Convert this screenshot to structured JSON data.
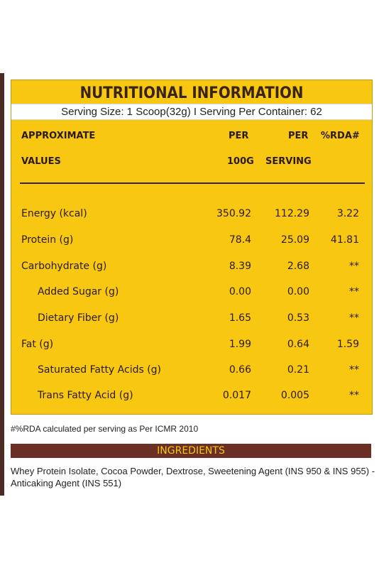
{
  "title": "NUTRITIONAL INFORMATION",
  "serving": "Serving Size: 1 Scoop(32g) I Serving Per Container: 62",
  "headers": {
    "approx": "APPROXIMATE",
    "values": "VALUES",
    "per1": "PER",
    "per1b": "100G",
    "per2": "PER",
    "per2b": "SERVING",
    "rda": "%RDA#"
  },
  "rows": [
    {
      "label": "Energy (kcal)",
      "per100": "350.92",
      "serving": "112.29",
      "rda": "3.22"
    },
    {
      "label": "Protein (g)",
      "per100": "78.4",
      "serving": "25.09",
      "rda": "41.81"
    },
    {
      "label": "Carbohydrate (g)",
      "per100": "8.39",
      "serving": "2.68",
      "rda": "**"
    },
    {
      "label": "Added Sugar (g)",
      "per100": "0.00",
      "serving": "0.00",
      "rda": "**"
    },
    {
      "label": "Dietary Fiber (g)",
      "per100": "1.65",
      "serving": "0.53",
      "rda": "**"
    },
    {
      "label": "Fat (g)",
      "per100": "1.99",
      "serving": "0.64",
      "rda": "1.59"
    },
    {
      "label": "Saturated Fatty Acids (g)",
      "per100": "0.66",
      "serving": "0.21",
      "rda": "**"
    },
    {
      "label": "Trans Fatty Acid (g)",
      "per100": "0.017",
      "serving": "0.005",
      "rda": "**"
    }
  ],
  "footnote": "#%RDA calculated per serving as Per ICMR 2010",
  "ingredients": {
    "title": "INGREDIENTS",
    "text": "Whey Protein Isolate, Cocoa Powder, Dextrose, Sweetening Agent (INS 950 & INS 955) - Anticaking  Agent (INS 551)"
  },
  "colors": {
    "panel": "#f7c711",
    "brown": "#6b2f26",
    "text": "#2b1a10"
  }
}
